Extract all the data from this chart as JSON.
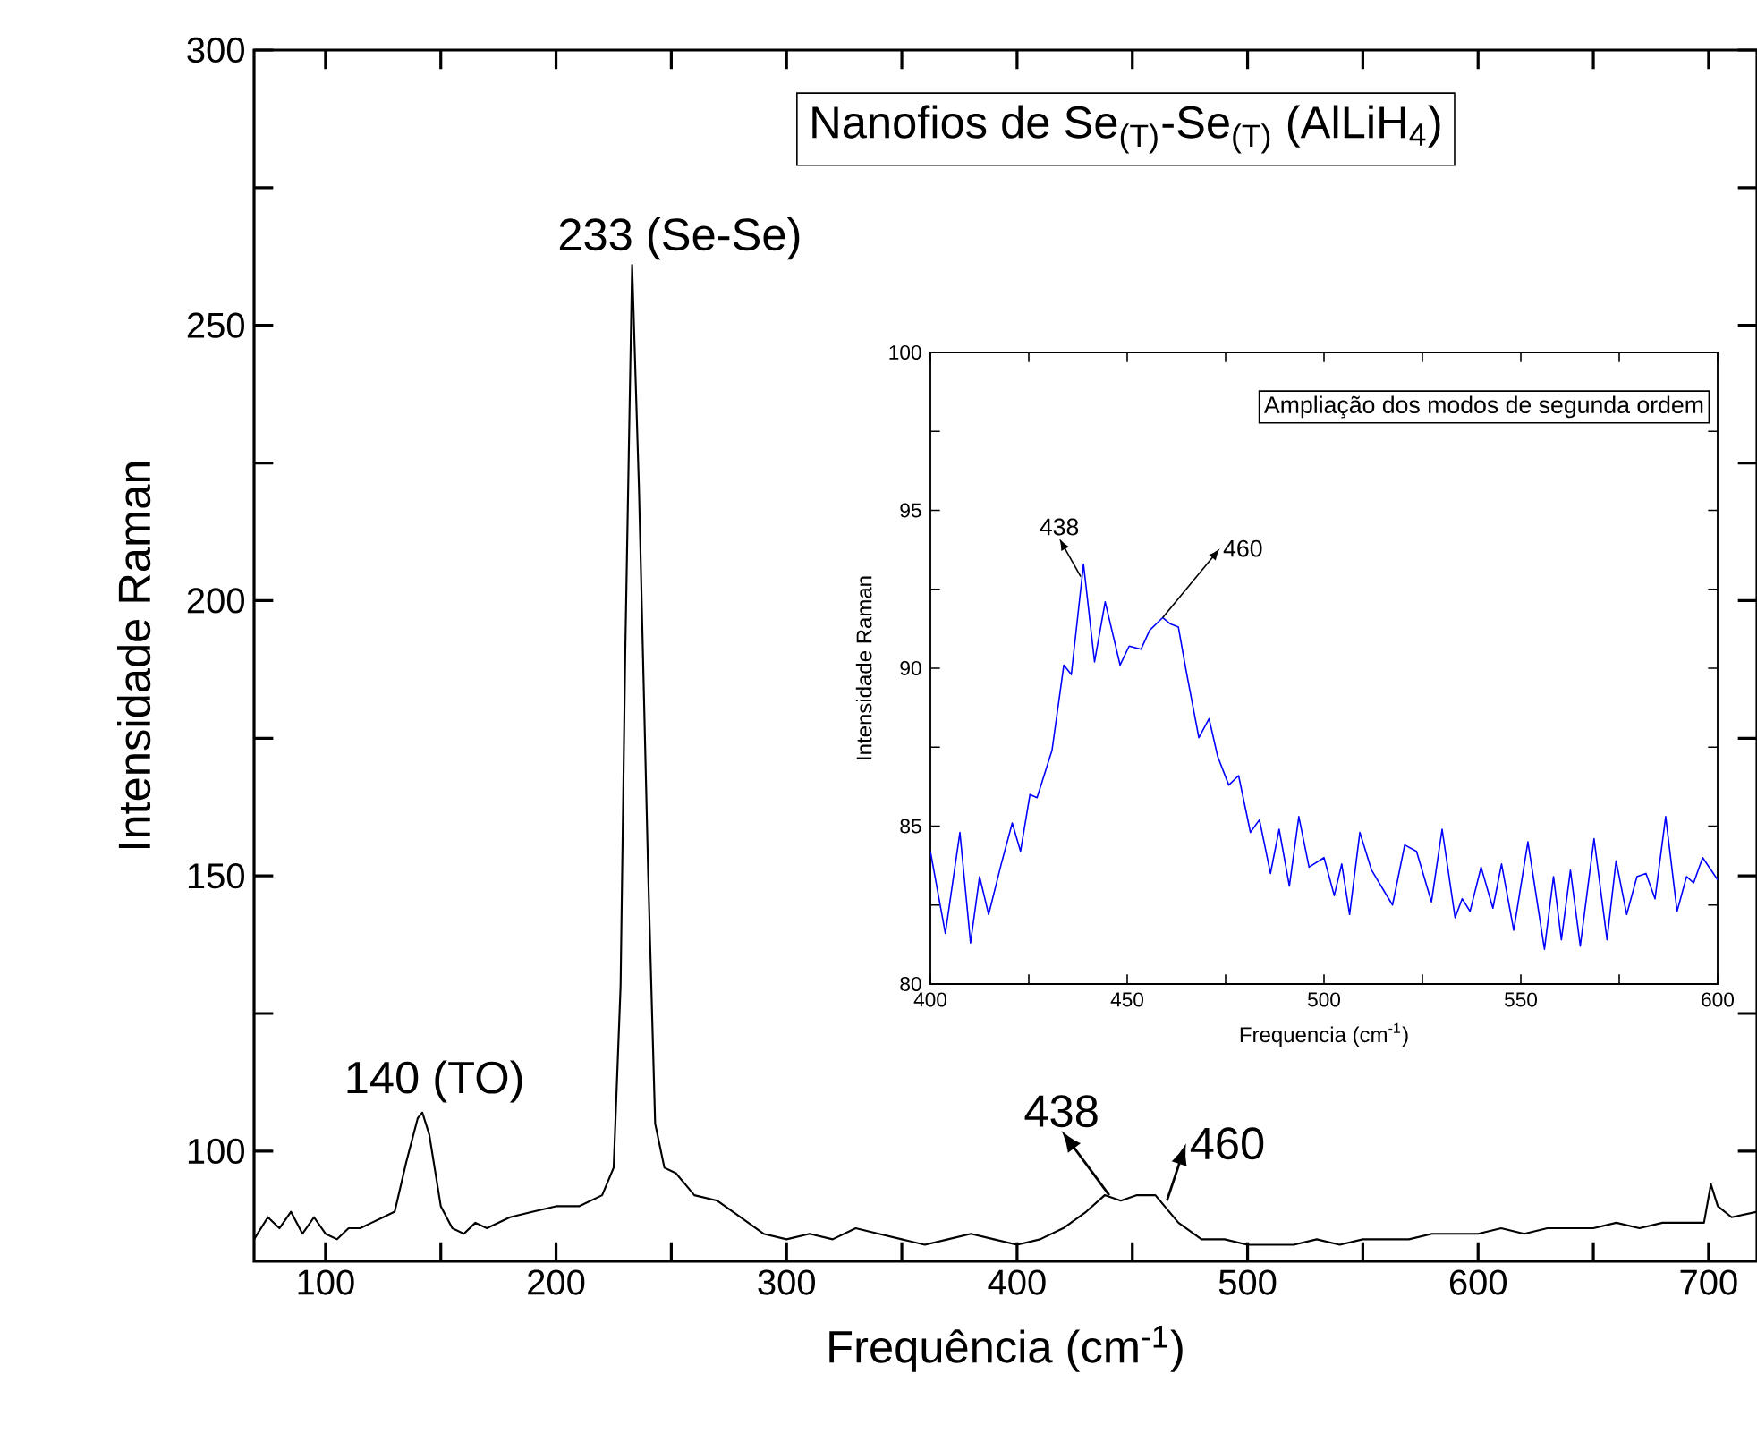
{
  "chart_data": [
    {
      "type": "line",
      "title": "Nanofios de Se$_{(T)}$-Se$_{(T)}$ (AlLiH$_{4}$)",
      "xlabel": "Frequência (cm$^{-1}$)",
      "ylabel": "Intensidade Raman",
      "x": [
        69,
        75,
        80,
        85,
        90,
        95,
        100,
        105,
        110,
        115,
        120,
        125,
        130,
        135,
        140,
        142,
        145,
        150,
        155,
        160,
        165,
        170,
        180,
        190,
        200,
        210,
        215,
        220,
        225,
        228,
        230,
        233,
        236,
        240,
        243,
        247,
        252,
        260,
        270,
        280,
        290,
        300,
        310,
        320,
        330,
        340,
        350,
        360,
        370,
        380,
        390,
        400,
        410,
        420,
        430,
        438,
        445,
        452,
        460,
        470,
        480,
        490,
        500,
        510,
        520,
        530,
        540,
        550,
        560,
        570,
        580,
        590,
        600,
        610,
        620,
        630,
        640,
        650,
        660,
        670,
        680,
        690,
        698,
        701,
        704,
        710,
        721
      ],
      "series": [
        {
          "color": "#000000",
          "values": [
            84,
            88,
            86,
            89,
            85,
            88,
            85,
            84,
            86,
            86,
            87,
            88,
            89,
            98,
            106,
            107,
            103,
            90,
            86,
            85,
            87,
            86,
            88,
            89,
            90,
            90,
            91,
            92,
            97,
            130,
            190,
            261,
            220,
            150,
            105,
            97,
            96,
            92,
            91,
            88,
            85,
            84,
            85,
            84,
            86,
            85,
            84,
            83,
            84,
            85,
            84,
            83,
            84,
            86,
            89,
            92,
            91,
            92,
            92,
            87,
            84,
            84,
            83,
            83,
            83,
            84,
            83,
            84,
            84,
            84,
            85,
            85,
            85,
            86,
            85,
            86,
            86,
            86,
            87,
            86,
            87,
            87,
            87,
            94,
            90,
            88,
            89
          ]
        }
      ],
      "xlim": [
        69,
        721
      ],
      "ylim": [
        80,
        300
      ],
      "xticks": [
        100,
        {
          "value": 150,
          "label": null
        },
        200,
        {
          "value": 250,
          "label": null
        },
        300,
        {
          "value": 350,
          "label": null
        },
        400,
        {
          "value": 450,
          "label": null
        },
        500,
        {
          "value": 550,
          "label": null
        },
        600,
        {
          "value": 650,
          "label": null
        },
        700
      ],
      "yticks": [
        100,
        {
          "value": 125,
          "label": null
        },
        150,
        {
          "value": 175,
          "label": null
        },
        200,
        {
          "value": 225,
          "label": null
        },
        250,
        {
          "value": 275,
          "label": null
        },
        300
      ],
      "annotations": [
        {
          "text": "140 (TO)",
          "x": 140,
          "y": 107
        },
        {
          "text": "233 (Se-Se)",
          "x": 233,
          "y": 261
        },
        {
          "text": "438",
          "x": 440,
          "y": 92
        },
        {
          "text": "460",
          "x": 465,
          "y": 91
        }
      ]
    },
    {
      "type": "line",
      "title": "Ampliação dos modos de segunda ordem",
      "xlabel": "Frequencia (cm$^{-1}$)",
      "ylabel": "Intensidade Raman",
      "x": [
        400,
        403.8,
        407.5,
        410.2,
        412.5,
        414.8,
        418,
        420.8,
        422.9,
        425.3,
        427.1,
        430.9,
        433.9,
        435.8,
        438.9,
        441.7,
        444.4,
        448.2,
        450.5,
        453.5,
        455.7,
        459,
        461,
        463,
        465,
        468.2,
        470.8,
        473,
        475.8,
        478.3,
        481.3,
        483.6,
        486.4,
        488.6,
        491.2,
        493.6,
        496.2,
        500,
        502.6,
        504.5,
        506.5,
        509.1,
        512.1,
        517.4,
        520.5,
        523.5,
        527.3,
        530,
        533.3,
        535.1,
        537.1,
        539.9,
        542.9,
        545.1,
        548.2,
        551.8,
        556,
        558.3,
        560.3,
        562.6,
        565.1,
        568.6,
        571.9,
        574.2,
        576.9,
        579.5,
        581.8,
        584.1,
        586.8,
        589.7,
        592.1,
        593.9,
        596.2,
        600
      ],
      "series": [
        {
          "color": "#0000ff",
          "values": [
            84.2,
            81.6,
            84.8,
            81.3,
            83.4,
            82.2,
            83.8,
            85.1,
            84.2,
            86.0,
            85.9,
            87.4,
            90.1,
            89.8,
            93.3,
            90.2,
            92.1,
            90.1,
            90.7,
            90.6,
            91.2,
            91.6,
            91.4,
            91.3,
            89.9,
            87.8,
            88.4,
            87.2,
            86.3,
            86.6,
            84.8,
            85.2,
            83.5,
            84.9,
            83.1,
            85.3,
            83.7,
            84.0,
            82.8,
            83.8,
            82.2,
            84.8,
            83.6,
            82.5,
            84.4,
            84.2,
            82.6,
            84.9,
            82.1,
            82.7,
            82.3,
            83.7,
            82.4,
            83.8,
            81.7,
            84.5,
            81.1,
            83.4,
            81.4,
            83.6,
            81.2,
            84.6,
            81.4,
            83.9,
            82.2,
            83.4,
            83.5,
            82.7,
            85.3,
            82.3,
            83.4,
            83.2,
            84.0,
            83.3
          ]
        }
      ],
      "xlim": [
        400,
        600
      ],
      "ylim": [
        80,
        100
      ],
      "xticks": [
        400,
        {
          "value": 425,
          "label": null
        },
        450,
        {
          "value": 475,
          "label": null
        },
        500,
        {
          "value": 525,
          "label": null
        },
        550,
        {
          "value": 575,
          "label": null
        },
        600
      ],
      "yticks": [
        80,
        {
          "value": 82.5,
          "label": null
        },
        85,
        {
          "value": 87.5,
          "label": null
        },
        90,
        {
          "value": 92.5,
          "label": null
        },
        95,
        {
          "value": 97.5,
          "label": null
        },
        100
      ],
      "annotations": [
        {
          "text": "438",
          "x": 438.2,
          "y": 92.9
        },
        {
          "text": "460",
          "x": 459,
          "y": 91.6
        }
      ]
    }
  ]
}
